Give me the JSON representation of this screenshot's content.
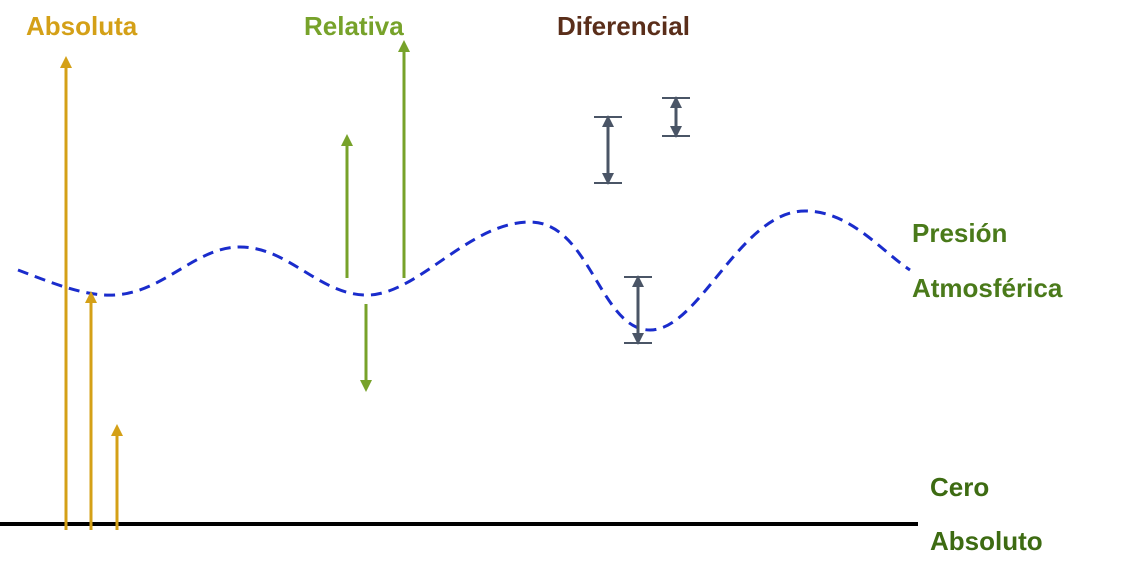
{
  "headers": {
    "absolute": "Absoluta",
    "relative": "Relativa",
    "differential": "Diferencial"
  },
  "references": {
    "atmospheric": {
      "line1": "Presión",
      "line2": "Atmosférica"
    },
    "zero": {
      "line1": "Cero",
      "line2": "Absoluto"
    }
  }
}
